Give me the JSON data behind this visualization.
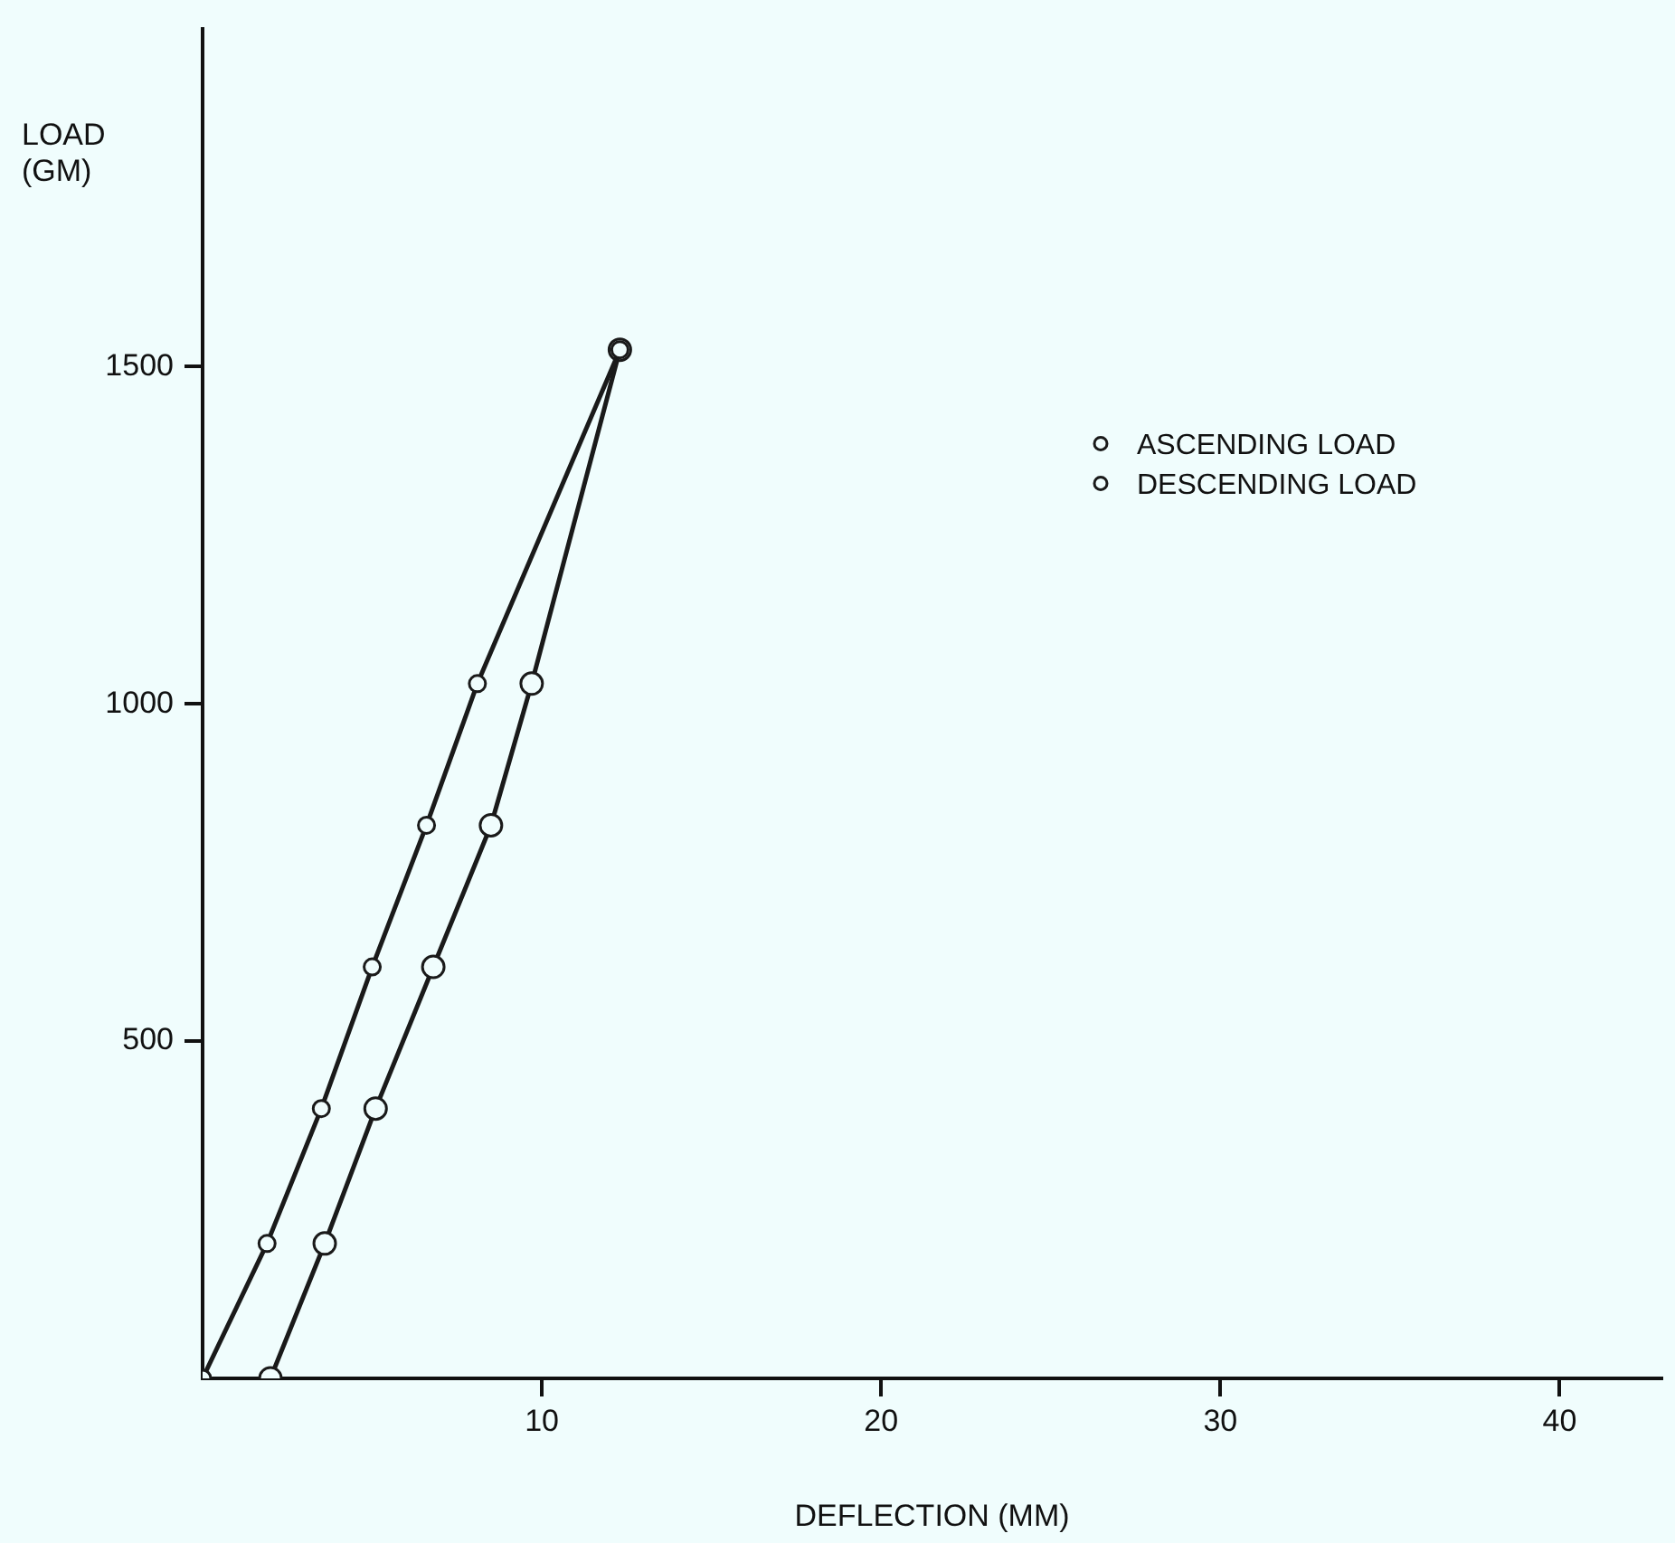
{
  "chart_data": {
    "type": "line",
    "xlabel": "DEFLECTION (MM)",
    "ylabel": "LOAD (GM)",
    "xlim": [
      0,
      43
    ],
    "xticks": [
      10,
      20,
      30,
      40
    ],
    "ylim": [
      0,
      2000
    ],
    "yticks": [
      500,
      1000,
      1500
    ],
    "series": [
      {
        "name": "ASCENDING LOAD",
        "color": "#1a1a1a",
        "x": [
          0,
          1.9,
          3.5,
          5.0,
          6.6,
          8.1,
          12.3
        ],
        "values": [
          0,
          200,
          400,
          610,
          820,
          1030,
          1525
        ]
      },
      {
        "name": "DESCENDING LOAD",
        "color": "#1a1a1a",
        "x": [
          12.3,
          9.7,
          8.5,
          6.8,
          5.1,
          3.6,
          2.0
        ],
        "values": [
          1525,
          1030,
          820,
          610,
          400,
          200,
          0
        ]
      }
    ],
    "marker": "circle",
    "line_style": "solid",
    "grid": false,
    "legend": "right"
  }
}
